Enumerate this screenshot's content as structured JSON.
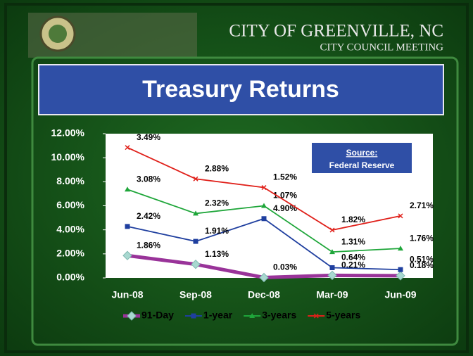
{
  "header": {
    "city": "CITY OF GREENVILLE, NC",
    "meeting": "CITY COUNCIL MEETING"
  },
  "chart_data": {
    "type": "line",
    "stacked": true,
    "title": "Treasury Returns",
    "annotation": {
      "heading": "Source:",
      "text": "Federal Reserve"
    },
    "categories": [
      "Jun-08",
      "Sep-08",
      "Dec-08",
      "Mar-09",
      "Jun-09"
    ],
    "ylim": [
      0,
      12
    ],
    "yticks": [
      {
        "value": 0,
        "label": "0.00%"
      },
      {
        "value": 2,
        "label": "2.00%"
      },
      {
        "value": 4,
        "label": "4.00%"
      },
      {
        "value": 6,
        "label": "6.00%"
      },
      {
        "value": 8,
        "label": "8.00%"
      },
      {
        "value": 10,
        "label": "10.00%"
      },
      {
        "value": 12,
        "label": "12.00%"
      }
    ],
    "legend": "bottom",
    "series": [
      {
        "name": "91-Day",
        "color": "#993399",
        "marker": "diamond",
        "values": [
          1.86,
          1.13,
          0.03,
          0.21,
          0.18
        ],
        "value_labels": [
          "1.86%",
          "1.13%",
          "0.03%",
          "0.21%",
          "0.18%"
        ]
      },
      {
        "name": "1-year",
        "color": "#1f3f9f",
        "marker": "square",
        "values": [
          2.42,
          1.91,
          4.9,
          0.64,
          0.51
        ],
        "value_labels": [
          "2.42%",
          "1.91%",
          "4.90%",
          "0.64%",
          "0.51%"
        ]
      },
      {
        "name": "3-years",
        "color": "#1fa63a",
        "marker": "triangle",
        "values": [
          3.08,
          2.32,
          1.07,
          1.31,
          1.76
        ],
        "value_labels": [
          "3.08%",
          "2.32%",
          "1.07%",
          "1.31%",
          "1.76%"
        ]
      },
      {
        "name": "5-years",
        "color": "#e0201a",
        "marker": "x",
        "values": [
          3.49,
          2.88,
          1.52,
          1.82,
          2.71
        ],
        "value_labels": [
          "3.49%",
          "2.88%",
          "1.52%",
          "1.82%",
          "2.71%"
        ]
      }
    ]
  }
}
